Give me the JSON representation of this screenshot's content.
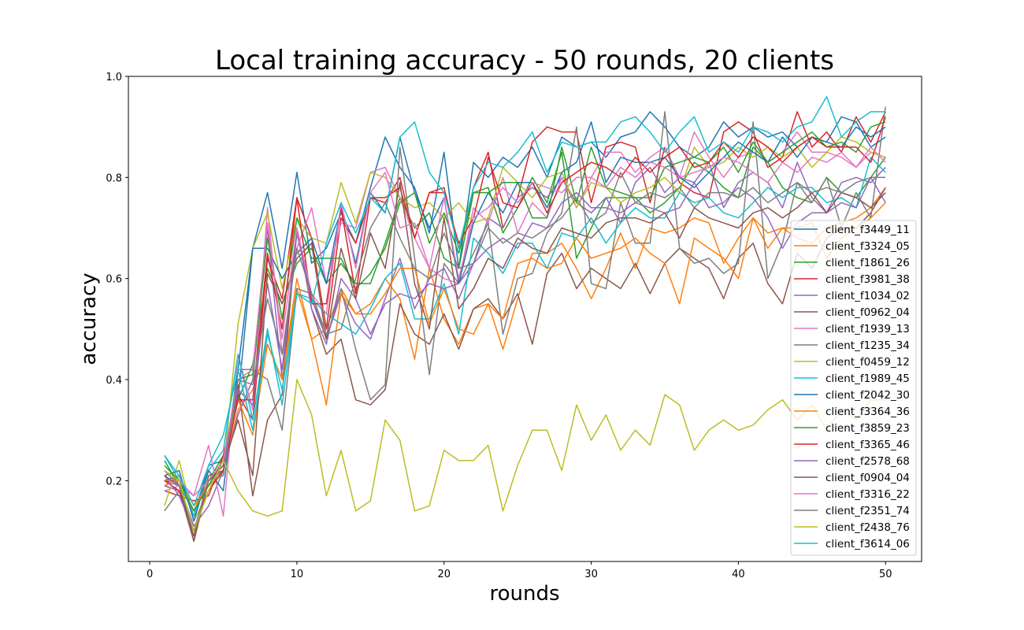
{
  "chart_data": {
    "type": "line",
    "title": "Local training accuracy - 50 rounds, 20 clients",
    "xlabel": "rounds",
    "ylabel": "accuracy",
    "xlim": [
      -1.45,
      52.45
    ],
    "ylim": [
      0.04,
      1.0
    ],
    "xticks": [
      0,
      10,
      20,
      30,
      40,
      50
    ],
    "yticks": [
      0.2,
      0.4,
      0.6,
      0.8,
      1.0
    ],
    "xtick_labels": [
      "0",
      "10",
      "20",
      "30",
      "40",
      "50"
    ],
    "ytick_labels": [
      "0.2",
      "0.4",
      "0.6",
      "0.8",
      "1.0"
    ],
    "grid": false,
    "legend_position": "lower-right",
    "x": [
      1,
      2,
      3,
      4,
      5,
      6,
      7,
      8,
      9,
      10,
      11,
      12,
      13,
      14,
      15,
      16,
      17,
      18,
      19,
      20,
      21,
      22,
      23,
      24,
      25,
      26,
      27,
      28,
      29,
      30,
      31,
      32,
      33,
      34,
      35,
      36,
      37,
      38,
      39,
      40,
      41,
      42,
      43,
      44,
      45,
      46,
      47,
      48,
      49,
      50
    ],
    "series": [
      {
        "name": "client_f3449_11",
        "color": "#1f77b4",
        "values": [
          0.2,
          0.21,
          0.13,
          0.23,
          0.24,
          0.36,
          0.66,
          0.77,
          0.62,
          0.81,
          0.63,
          0.66,
          0.73,
          0.67,
          0.78,
          0.88,
          0.82,
          0.78,
          0.69,
          0.85,
          0.62,
          0.83,
          0.8,
          0.84,
          0.82,
          0.86,
          0.8,
          0.88,
          0.86,
          0.87,
          0.84,
          0.88,
          0.89,
          0.93,
          0.9,
          0.86,
          0.84,
          0.86,
          0.91,
          0.88,
          0.9,
          0.88,
          0.89,
          0.86,
          0.88,
          0.87,
          0.92,
          0.91,
          0.86,
          0.88
        ]
      },
      {
        "name": "client_f3324_05",
        "color": "#ff7f0e",
        "values": [
          0.19,
          0.21,
          0.15,
          0.19,
          0.22,
          0.34,
          0.38,
          0.47,
          0.4,
          0.58,
          0.48,
          0.5,
          0.58,
          0.53,
          0.55,
          0.6,
          0.56,
          0.44,
          0.62,
          0.52,
          0.47,
          0.54,
          0.55,
          0.46,
          0.56,
          0.65,
          0.65,
          0.67,
          0.62,
          0.56,
          0.62,
          0.69,
          0.62,
          0.7,
          0.69,
          0.7,
          0.72,
          0.71,
          0.63,
          0.68,
          0.72,
          0.69,
          0.7,
          0.68,
          0.67,
          0.7,
          0.71,
          0.72,
          0.74,
          0.78
        ]
      },
      {
        "name": "client_f1861_26",
        "color": "#2ca02c",
        "values": [
          0.24,
          0.19,
          0.14,
          0.2,
          0.25,
          0.36,
          0.43,
          0.62,
          0.55,
          0.63,
          0.66,
          0.59,
          0.63,
          0.59,
          0.59,
          0.67,
          0.76,
          0.7,
          0.73,
          0.64,
          0.62,
          0.77,
          0.78,
          0.69,
          0.74,
          0.8,
          0.75,
          0.85,
          0.64,
          0.7,
          0.76,
          0.76,
          0.76,
          0.73,
          0.75,
          0.78,
          0.83,
          0.81,
          0.78,
          0.76,
          0.86,
          0.83,
          0.78,
          0.76,
          0.75,
          0.8,
          0.77,
          0.76,
          0.8,
          0.84
        ]
      },
      {
        "name": "client_f3981_38",
        "color": "#d62728",
        "values": [
          0.18,
          0.17,
          0.16,
          0.17,
          0.25,
          0.37,
          0.32,
          0.64,
          0.56,
          0.76,
          0.68,
          0.5,
          0.72,
          0.67,
          0.76,
          0.75,
          0.8,
          0.68,
          0.77,
          0.78,
          0.66,
          0.78,
          0.85,
          0.7,
          0.76,
          0.87,
          0.9,
          0.89,
          0.89,
          0.75,
          0.86,
          0.87,
          0.86,
          0.75,
          0.86,
          0.79,
          0.77,
          0.76,
          0.89,
          0.91,
          0.89,
          0.82,
          0.84,
          0.93,
          0.86,
          0.89,
          0.85,
          0.92,
          0.87,
          0.93
        ]
      },
      {
        "name": "client_f1034_02",
        "color": "#9467bd",
        "values": [
          0.2,
          0.19,
          0.11,
          0.15,
          0.22,
          0.33,
          0.4,
          0.7,
          0.4,
          0.69,
          0.56,
          0.48,
          0.57,
          0.51,
          0.48,
          0.56,
          0.64,
          0.54,
          0.6,
          0.62,
          0.56,
          0.63,
          0.72,
          0.7,
          0.76,
          0.78,
          0.76,
          0.8,
          0.75,
          0.73,
          0.76,
          0.71,
          0.79,
          0.82,
          0.77,
          0.8,
          0.79,
          0.83,
          0.74,
          0.79,
          0.81,
          0.79,
          0.74,
          0.83,
          0.76,
          0.73,
          0.79,
          0.8,
          0.79,
          0.82
        ]
      },
      {
        "name": "client_f0962_04",
        "color": "#8c564b",
        "values": [
          0.19,
          0.18,
          0.09,
          0.21,
          0.22,
          0.39,
          0.17,
          0.32,
          0.37,
          0.7,
          0.54,
          0.45,
          0.48,
          0.36,
          0.35,
          0.38,
          0.55,
          0.49,
          0.47,
          0.53,
          0.46,
          0.54,
          0.56,
          0.52,
          0.57,
          0.47,
          0.61,
          0.65,
          0.58,
          0.62,
          0.6,
          0.58,
          0.63,
          0.57,
          0.63,
          0.66,
          0.64,
          0.62,
          0.56,
          0.64,
          0.67,
          0.59,
          0.55,
          0.65,
          0.62,
          0.68,
          0.7,
          0.7,
          0.73,
          0.78
        ]
      },
      {
        "name": "client_f1939_13",
        "color": "#e377c2",
        "values": [
          0.18,
          0.19,
          0.17,
          0.27,
          0.13,
          0.45,
          0.34,
          0.74,
          0.45,
          0.66,
          0.74,
          0.59,
          0.71,
          0.7,
          0.81,
          0.82,
          0.76,
          0.68,
          0.62,
          0.6,
          0.59,
          0.74,
          0.71,
          0.8,
          0.69,
          0.75,
          0.72,
          0.8,
          0.74,
          0.8,
          0.85,
          0.85,
          0.81,
          0.84,
          0.86,
          0.8,
          0.89,
          0.84,
          0.8,
          0.84,
          0.85,
          0.83,
          0.85,
          0.89,
          0.85,
          0.85,
          0.84,
          0.82,
          0.85,
          0.84
        ]
      },
      {
        "name": "client_f1235_34",
        "color": "#7f7f7f",
        "values": [
          0.14,
          0.18,
          0.08,
          0.2,
          0.22,
          0.42,
          0.42,
          0.4,
          0.3,
          0.58,
          0.57,
          0.48,
          0.58,
          0.46,
          0.36,
          0.39,
          0.86,
          0.64,
          0.41,
          0.63,
          0.59,
          0.65,
          0.71,
          0.49,
          0.6,
          0.61,
          0.69,
          0.73,
          0.9,
          0.59,
          0.58,
          0.75,
          0.67,
          0.67,
          0.93,
          0.66,
          0.63,
          0.64,
          0.61,
          0.63,
          0.91,
          0.6,
          0.67,
          0.79,
          0.75,
          0.8,
          0.7,
          0.77,
          0.72,
          0.94
        ]
      },
      {
        "name": "client_f0459_12",
        "color": "#bcbd22",
        "values": [
          0.15,
          0.24,
          0.12,
          0.18,
          0.22,
          0.51,
          0.66,
          0.73,
          0.58,
          0.72,
          0.68,
          0.67,
          0.79,
          0.71,
          0.81,
          0.8,
          0.76,
          0.74,
          0.75,
          0.72,
          0.75,
          0.71,
          0.72,
          0.82,
          0.79,
          0.76,
          0.8,
          0.81,
          0.74,
          0.79,
          0.78,
          0.75,
          0.77,
          0.78,
          0.8,
          0.77,
          0.86,
          0.82,
          0.83,
          0.86,
          0.84,
          0.86,
          0.84,
          0.86,
          0.82,
          0.85,
          0.88,
          0.87,
          0.85,
          0.84
        ]
      },
      {
        "name": "client_f1989_45",
        "color": "#17becf",
        "values": [
          0.25,
          0.2,
          0.13,
          0.22,
          0.26,
          0.45,
          0.32,
          0.5,
          0.35,
          0.57,
          0.56,
          0.53,
          0.51,
          0.49,
          0.54,
          0.6,
          0.63,
          0.52,
          0.52,
          0.59,
          0.49,
          0.68,
          0.65,
          0.61,
          0.67,
          0.67,
          0.62,
          0.69,
          0.68,
          0.72,
          0.67,
          0.71,
          0.74,
          0.72,
          0.72,
          0.77,
          0.75,
          0.76,
          0.73,
          0.72,
          0.75,
          0.78,
          0.76,
          0.78,
          0.78,
          0.75,
          0.76,
          0.74,
          0.84,
          0.81
        ]
      },
      {
        "name": "client_f2042_30",
        "color": "#1f77b4",
        "values": [
          0.21,
          0.22,
          0.12,
          0.22,
          0.18,
          0.42,
          0.66,
          0.66,
          0.6,
          0.65,
          0.68,
          0.59,
          0.74,
          0.63,
          0.77,
          0.73,
          0.88,
          0.77,
          0.7,
          0.76,
          0.59,
          0.71,
          0.77,
          0.73,
          0.79,
          0.79,
          0.74,
          0.81,
          0.83,
          0.91,
          0.79,
          0.84,
          0.83,
          0.83,
          0.84,
          0.8,
          0.78,
          0.81,
          0.84,
          0.87,
          0.85,
          0.83,
          0.88,
          0.84,
          0.88,
          0.87,
          0.86,
          0.9,
          0.88,
          0.9
        ]
      },
      {
        "name": "client_f3364_36",
        "color": "#ff7f0e",
        "values": [
          0.2,
          0.2,
          0.14,
          0.2,
          0.23,
          0.36,
          0.29,
          0.47,
          0.4,
          0.6,
          0.48,
          0.35,
          0.57,
          0.53,
          0.53,
          0.57,
          0.62,
          0.62,
          0.51,
          0.58,
          0.5,
          0.49,
          0.55,
          0.52,
          0.63,
          0.64,
          0.62,
          0.63,
          0.68,
          0.64,
          0.65,
          0.66,
          0.68,
          0.65,
          0.63,
          0.55,
          0.68,
          0.66,
          0.64,
          0.6,
          0.72,
          0.66,
          0.7,
          0.7,
          0.71,
          0.64,
          0.68,
          0.7,
          0.72,
          0.75
        ]
      },
      {
        "name": "client_f3859_23",
        "color": "#2ca02c",
        "values": [
          0.23,
          0.2,
          0.14,
          0.19,
          0.24,
          0.4,
          0.41,
          0.68,
          0.52,
          0.72,
          0.64,
          0.64,
          0.64,
          0.58,
          0.61,
          0.66,
          0.75,
          0.77,
          0.67,
          0.73,
          0.65,
          0.77,
          0.77,
          0.79,
          0.79,
          0.72,
          0.72,
          0.86,
          0.75,
          0.86,
          0.78,
          0.77,
          0.76,
          0.76,
          0.82,
          0.83,
          0.84,
          0.83,
          0.86,
          0.81,
          0.87,
          0.83,
          0.85,
          0.87,
          0.89,
          0.86,
          0.87,
          0.85,
          0.9,
          0.91
        ]
      },
      {
        "name": "client_f3365_46",
        "color": "#d62728",
        "values": [
          0.2,
          0.18,
          0.1,
          0.18,
          0.22,
          0.36,
          0.36,
          0.65,
          0.5,
          0.76,
          0.55,
          0.55,
          0.74,
          0.57,
          0.76,
          0.76,
          0.78,
          0.68,
          0.77,
          0.77,
          0.67,
          0.72,
          0.84,
          0.75,
          0.74,
          0.79,
          0.73,
          0.79,
          0.81,
          0.83,
          0.82,
          0.8,
          0.84,
          0.81,
          0.84,
          0.86,
          0.82,
          0.83,
          0.87,
          0.84,
          0.88,
          0.86,
          0.83,
          0.86,
          0.88,
          0.86,
          0.86,
          0.86,
          0.83,
          0.92
        ]
      },
      {
        "name": "client_f2578_68",
        "color": "#9467bd",
        "values": [
          0.21,
          0.17,
          0.1,
          0.2,
          0.23,
          0.38,
          0.35,
          0.59,
          0.42,
          0.7,
          0.54,
          0.47,
          0.6,
          0.56,
          0.49,
          0.55,
          0.57,
          0.56,
          0.59,
          0.58,
          0.59,
          0.63,
          0.66,
          0.68,
          0.66,
          0.71,
          0.7,
          0.75,
          0.77,
          0.74,
          0.74,
          0.73,
          0.75,
          0.74,
          0.73,
          0.74,
          0.79,
          0.74,
          0.75,
          0.78,
          0.76,
          0.72,
          0.66,
          0.71,
          0.73,
          0.73,
          0.75,
          0.74,
          0.8,
          0.75
        ]
      },
      {
        "name": "client_f0904_04",
        "color": "#8c564b",
        "values": [
          0.21,
          0.19,
          0.08,
          0.2,
          0.23,
          0.32,
          0.21,
          0.61,
          0.55,
          0.64,
          0.67,
          0.48,
          0.66,
          0.56,
          0.69,
          0.62,
          0.79,
          0.59,
          0.5,
          0.72,
          0.54,
          0.58,
          0.64,
          0.62,
          0.68,
          0.66,
          0.65,
          0.7,
          0.69,
          0.68,
          0.71,
          0.72,
          0.72,
          0.71,
          0.73,
          0.68,
          0.74,
          0.72,
          0.71,
          0.7,
          0.73,
          0.74,
          0.72,
          0.74,
          0.77,
          0.73,
          0.77,
          0.76,
          0.74,
          0.77
        ]
      },
      {
        "name": "client_f3316_22",
        "color": "#e377c2",
        "values": [
          0.19,
          0.2,
          0.17,
          0.2,
          0.24,
          0.4,
          0.42,
          0.71,
          0.48,
          0.7,
          0.57,
          0.53,
          0.75,
          0.62,
          0.77,
          0.81,
          0.7,
          0.71,
          0.62,
          0.76,
          0.6,
          0.72,
          0.74,
          0.78,
          0.75,
          0.79,
          0.78,
          0.77,
          0.8,
          0.8,
          0.78,
          0.82,
          0.8,
          0.83,
          0.82,
          0.8,
          0.81,
          0.82,
          0.84,
          0.83,
          0.81,
          0.79,
          0.83,
          0.81,
          0.84,
          0.83,
          0.85,
          0.82,
          0.86,
          0.83
        ]
      },
      {
        "name": "client_f2351_74",
        "color": "#7f7f7f",
        "values": [
          0.22,
          0.19,
          0.1,
          0.2,
          0.21,
          0.4,
          0.39,
          0.56,
          0.45,
          0.66,
          0.57,
          0.49,
          0.5,
          0.6,
          0.7,
          0.75,
          0.68,
          0.62,
          0.6,
          0.69,
          0.62,
          0.63,
          0.7,
          0.67,
          0.69,
          0.68,
          0.7,
          0.72,
          0.76,
          0.71,
          0.73,
          0.81,
          0.75,
          0.77,
          0.76,
          0.78,
          0.74,
          0.77,
          0.77,
          0.76,
          0.78,
          0.75,
          0.77,
          0.79,
          0.77,
          0.78,
          0.77,
          0.79,
          0.8,
          0.8
        ]
      },
      {
        "name": "client_f2438_76",
        "color": "#bcbd22",
        "values": [
          0.22,
          0.2,
          0.1,
          0.18,
          0.24,
          0.18,
          0.14,
          0.13,
          0.14,
          0.4,
          0.33,
          0.17,
          0.26,
          0.14,
          0.16,
          0.32,
          0.28,
          0.14,
          0.15,
          0.26,
          0.24,
          0.24,
          0.27,
          0.14,
          0.23,
          0.3,
          0.3,
          0.22,
          0.35,
          0.28,
          0.33,
          0.26,
          0.3,
          0.27,
          0.37,
          0.35,
          0.26,
          0.3,
          0.32,
          0.3,
          0.31,
          0.34,
          0.36,
          0.32,
          0.35,
          0.3,
          0.34,
          0.32,
          0.36,
          0.36
        ]
      },
      {
        "name": "client_f3614_06",
        "color": "#17becf",
        "values": [
          0.25,
          0.21,
          0.15,
          0.23,
          0.29,
          0.42,
          0.3,
          0.49,
          0.38,
          0.57,
          0.55,
          0.67,
          0.75,
          0.69,
          0.76,
          0.73,
          0.88,
          0.91,
          0.81,
          0.77,
          0.66,
          0.78,
          0.83,
          0.82,
          0.85,
          0.89,
          0.81,
          0.87,
          0.86,
          0.87,
          0.87,
          0.91,
          0.92,
          0.89,
          0.85,
          0.89,
          0.92,
          0.85,
          0.87,
          0.85,
          0.9,
          0.89,
          0.87,
          0.9,
          0.91,
          0.96,
          0.88,
          0.91,
          0.93,
          0.93
        ]
      }
    ]
  }
}
